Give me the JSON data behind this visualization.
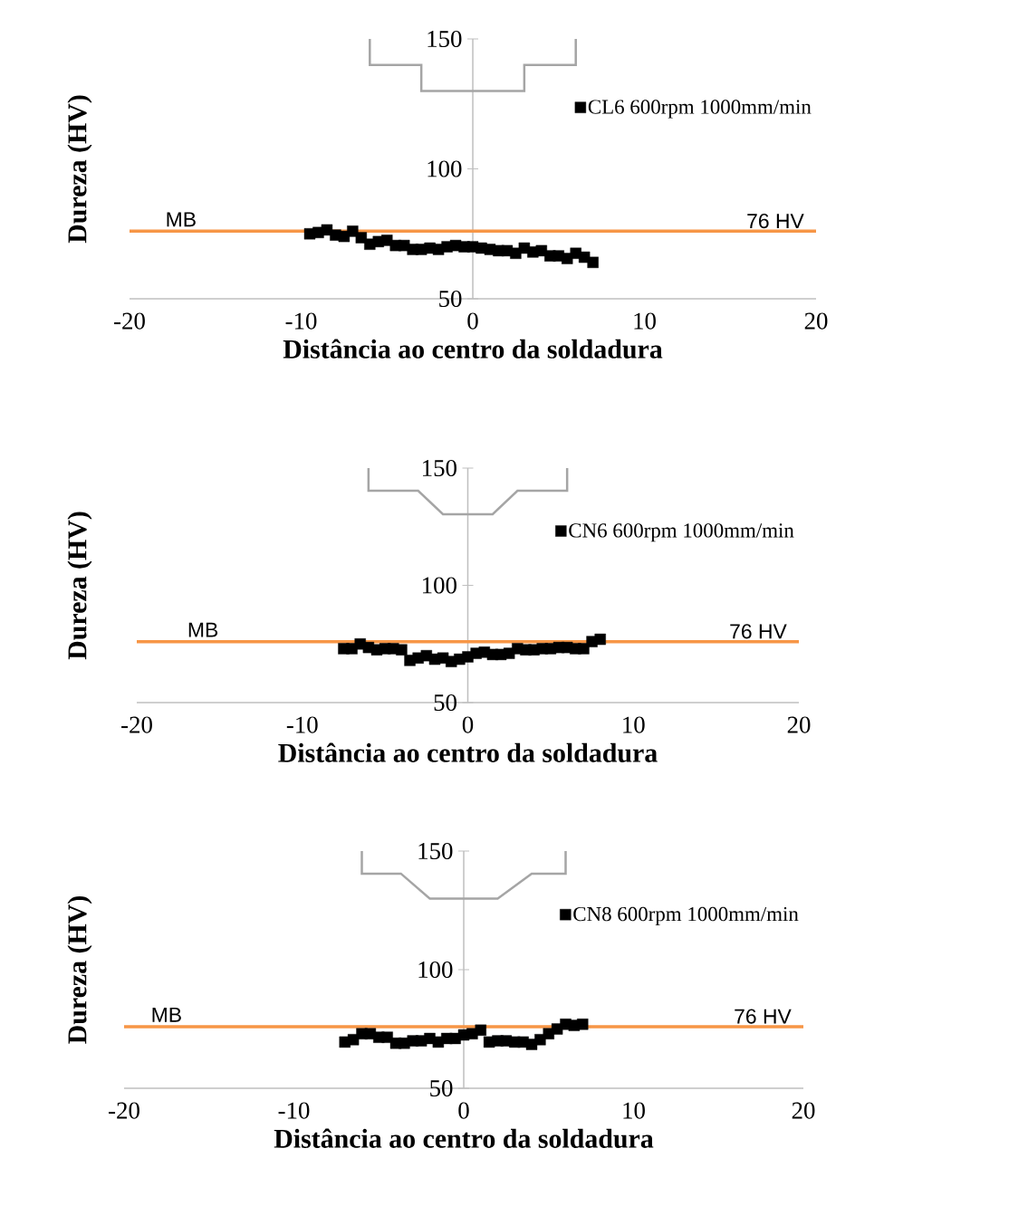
{
  "chart_data": [
    {
      "type": "scatter",
      "xlabel": "Distância ao centro da soldadura",
      "ylabel": "Dureza (HV)",
      "xlim": [
        -20,
        20
      ],
      "xticks": [
        -20,
        -10,
        0,
        10,
        20
      ],
      "ylim": [
        50,
        150
      ],
      "yticks": [
        50,
        100,
        150
      ],
      "legend": "top right",
      "marker": "square",
      "grid": false,
      "series": [
        {
          "name": "CL6 600rpm 1000mm/min",
          "color": "#000000",
          "x": [
            -9.5,
            -9,
            -8.5,
            -8,
            -7.5,
            -7,
            -6.5,
            -6,
            -5.5,
            -5,
            -4.5,
            -4,
            -3.5,
            -3,
            -2.5,
            -2,
            -1.5,
            -1,
            -0.5,
            0,
            0.5,
            1,
            1.5,
            2,
            2.5,
            3,
            3.5,
            4,
            4.5,
            5,
            5.5,
            6,
            6.5,
            7
          ],
          "values": [
            75,
            75.5,
            76.5,
            74.5,
            74,
            76,
            73.5,
            71,
            72,
            72.5,
            70.5,
            70.5,
            69,
            69,
            69.5,
            69,
            70,
            70.5,
            70,
            70,
            69.5,
            69,
            68.5,
            68.5,
            67.5,
            69.5,
            68,
            68.5,
            66.5,
            66.5,
            65.5,
            67.5,
            66,
            64
          ]
        }
      ],
      "ref_lines": [
        {
          "axis": "y",
          "value": 76,
          "label": "76 HV",
          "color": "#f79646"
        }
      ],
      "annotations": [
        {
          "text": "MB",
          "x": -17,
          "y": 76
        }
      ]
    },
    {
      "type": "scatter",
      "xlabel": "Distância ao centro da soldadura",
      "ylabel": "Dureza (HV)",
      "xlim": [
        -20,
        20
      ],
      "xticks": [
        -20,
        -10,
        0,
        10,
        20
      ],
      "ylim": [
        50,
        150
      ],
      "yticks": [
        50,
        100,
        150
      ],
      "legend": "top right",
      "marker": "square",
      "grid": false,
      "series": [
        {
          "name": "CN6 600rpm 1000mm/min",
          "color": "#000000",
          "x": [
            -7.5,
            -7,
            -6.5,
            -6,
            -5.5,
            -5,
            -4.5,
            -4,
            -3.5,
            -3,
            -2.5,
            -2,
            -1.5,
            -1,
            -0.5,
            0,
            0.5,
            1,
            1.5,
            2,
            2.5,
            3,
            3.5,
            4,
            4.5,
            5,
            5.5,
            6,
            6.5,
            7,
            7.5,
            8
          ],
          "values": [
            73,
            73,
            75,
            73.5,
            72.5,
            73,
            73,
            72.5,
            68,
            69,
            70,
            68.5,
            69,
            67.5,
            68.5,
            69.5,
            71,
            71.5,
            70.5,
            70.5,
            71,
            73,
            72.5,
            72.5,
            73,
            73,
            73.5,
            73.5,
            73,
            73,
            76,
            77
          ]
        }
      ],
      "ref_lines": [
        {
          "axis": "y",
          "value": 76,
          "label": "76 HV",
          "color": "#f79646"
        }
      ],
      "annotations": [
        {
          "text": "MB",
          "x": -16,
          "y": 76
        }
      ]
    },
    {
      "type": "scatter",
      "xlabel": "Distância ao centro da soldadura",
      "ylabel": "Dureza (HV)",
      "xlim": [
        -20,
        20
      ],
      "xticks": [
        -20,
        -10,
        0,
        10,
        20
      ],
      "ylim": [
        50,
        150
      ],
      "yticks": [
        50,
        100,
        150
      ],
      "legend": "top right",
      "marker": "square",
      "grid": false,
      "series": [
        {
          "name": "CN8 600rpm 1000mm/min",
          "color": "#000000",
          "x": [
            -7,
            -6.5,
            -6,
            -5.5,
            -5,
            -4.5,
            -4,
            -3.5,
            -3,
            -2.5,
            -2,
            -1.5,
            -1,
            -0.5,
            0,
            0.5,
            1,
            1.5,
            2,
            2.5,
            3,
            3.5,
            4,
            4.5,
            5,
            5.5,
            6,
            6.5,
            7
          ],
          "values": [
            69.5,
            70.5,
            73,
            73,
            71.5,
            71.5,
            69,
            69,
            70,
            70,
            71,
            69.5,
            71,
            71,
            72.5,
            73,
            74.5,
            69.5,
            70,
            70,
            69.5,
            69.5,
            68.5,
            70.5,
            73,
            75,
            77,
            76.5,
            77
          ]
        }
      ],
      "ref_lines": [
        {
          "axis": "y",
          "value": 76,
          "label": "76 HV",
          "color": "#f79646"
        }
      ],
      "annotations": [
        {
          "text": "MB",
          "x": -17.5,
          "y": 76
        }
      ]
    }
  ]
}
